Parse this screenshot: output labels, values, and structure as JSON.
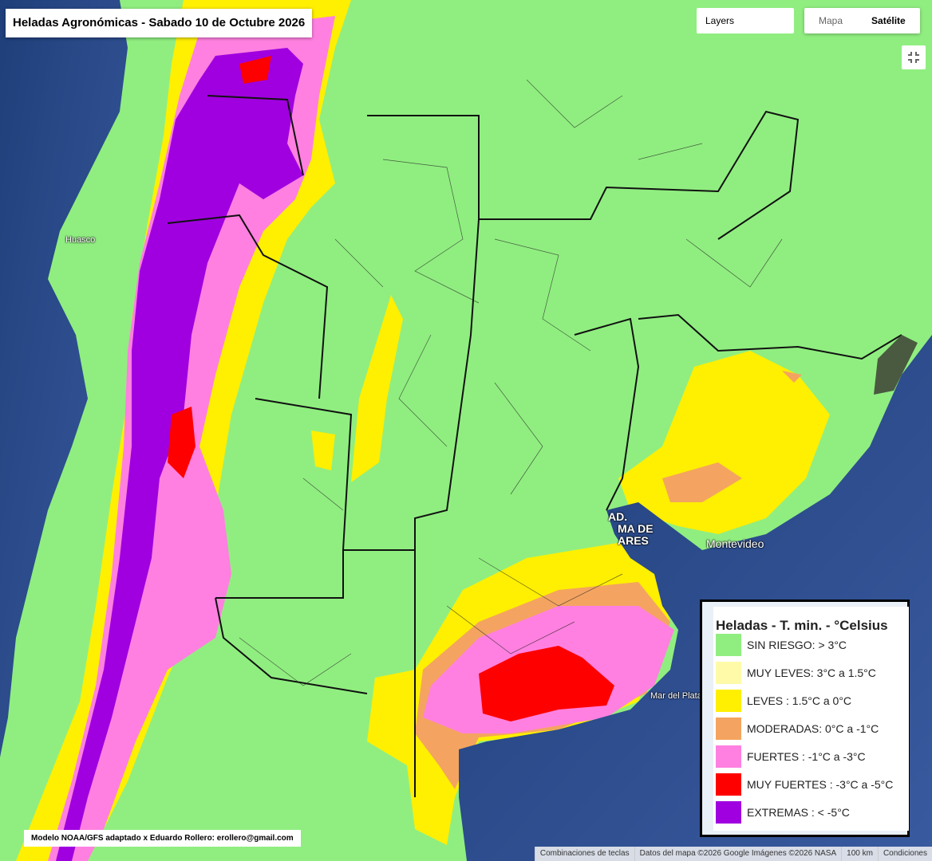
{
  "header": {
    "title": "Heladas Agronómicas - Sabado 10 de Octubre 2026"
  },
  "controls": {
    "layers": "Layers",
    "map_types": [
      "Mapa",
      "Satélite"
    ]
  },
  "places": [
    "Huasco",
    "Montevideo",
    "Mar del Plata"
  ],
  "buenos_aires_label": [
    "AD.",
    "MA DE",
    "ARES"
  ],
  "legend": {
    "title": "Heladas - T. min. - °Celsius",
    "items": [
      {
        "label": "SIN RIESGO: > 3°C",
        "color": "#90ee80"
      },
      {
        "label": "MUY LEVES: 3°C a 1.5°C",
        "color": "#fffaa8"
      },
      {
        "label": "LEVES : 1.5°C a 0°C",
        "color": "#ffef00"
      },
      {
        "label": "MODERADAS: 0°C a -1°C",
        "color": "#f4a460"
      },
      {
        "label": "FUERTES : -1°C a -3°C",
        "color": "#ff80e0"
      },
      {
        "label": "MUY FUERTES : -3°C a -5°C",
        "color": "#ff0000"
      },
      {
        "label": "EXTREMAS : < -5°C",
        "color": "#a000e0"
      }
    ]
  },
  "credit": "Modelo NOAA/GFS adaptado x Eduardo Rollero: erollero@gmail.com",
  "footer": {
    "shortcuts": "Combinaciones de teclas",
    "map_data": "Datos del mapa ©2026 Google Imágenes ©2026 NASA",
    "scale": "100 km",
    "terms": "Condiciones"
  }
}
